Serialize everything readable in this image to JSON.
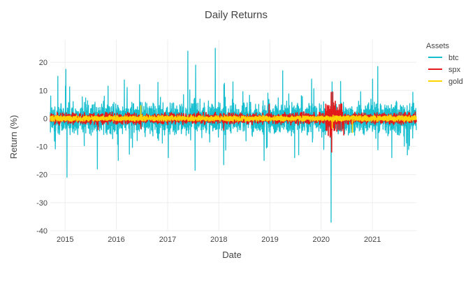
{
  "chart_data": {
    "type": "line",
    "title": "Daily Returns",
    "xlabel": "Date",
    "ylabel": "Return (%)",
    "x_range": [
      "2014-09-17",
      "2021-11-10"
    ],
    "ylim": [
      -40,
      28
    ],
    "y_ticks": [
      20,
      10,
      0,
      -10,
      -20,
      -30,
      -40
    ],
    "x_ticks": [
      "2015",
      "2016",
      "2017",
      "2018",
      "2019",
      "2020",
      "2021"
    ],
    "grid": true,
    "legend": {
      "title": "Assets",
      "placement": "top-right"
    },
    "series": [
      {
        "name": "btc",
        "color": "#17BECF",
        "typical_range": [
          -5,
          6
        ],
        "extremes": [
          {
            "x": "2014-09-20",
            "y": 8
          },
          {
            "x": "2014-11-10",
            "y": 15
          },
          {
            "x": "2015-01-06",
            "y": 17.5
          },
          {
            "x": "2015-01-14",
            "y": -21
          },
          {
            "x": "2015-08-19",
            "y": -18
          },
          {
            "x": "2015-11-03",
            "y": 11.5
          },
          {
            "x": "2016-01-15",
            "y": -15
          },
          {
            "x": "2016-06-15",
            "y": 12
          },
          {
            "x": "2017-01-06",
            "y": -14
          },
          {
            "x": "2017-05-25",
            "y": 24
          },
          {
            "x": "2017-07-16",
            "y": -18.5
          },
          {
            "x": "2017-07-20",
            "y": 19
          },
          {
            "x": "2017-12-07",
            "y": 25
          },
          {
            "x": "2018-02-05",
            "y": -16.5
          },
          {
            "x": "2018-02-06",
            "y": 12
          },
          {
            "x": "2018-04-12",
            "y": 13
          },
          {
            "x": "2018-11-20",
            "y": -15
          },
          {
            "x": "2019-04-02",
            "y": 17
          },
          {
            "x": "2019-06-26",
            "y": -14
          },
          {
            "x": "2019-10-25",
            "y": 14
          },
          {
            "x": "2020-03-12",
            "y": -37
          },
          {
            "x": "2020-03-19",
            "y": 13
          },
          {
            "x": "2021-01-02",
            "y": 14
          },
          {
            "x": "2021-02-08",
            "y": 18.5
          },
          {
            "x": "2021-05-19",
            "y": -14
          },
          {
            "x": "2021-09-07",
            "y": -13
          }
        ]
      },
      {
        "name": "spx",
        "color": "#E31A1C",
        "typical_range": [
          -2,
          2
        ],
        "extremes": [
          {
            "x": "2015-08-24",
            "y": -4
          },
          {
            "x": "2016-06-24",
            "y": -3.6
          },
          {
            "x": "2018-02-05",
            "y": -4.1
          },
          {
            "x": "2018-12-26",
            "y": 5
          },
          {
            "x": "2020-03-13",
            "y": 9.3
          },
          {
            "x": "2020-03-16",
            "y": -12
          },
          {
            "x": "2020-03-24",
            "y": 9.4
          },
          {
            "x": "2020-06-11",
            "y": -5.9
          }
        ]
      },
      {
        "name": "gold",
        "color": "#FFD400",
        "typical_range": [
          -1,
          1
        ],
        "extremes": [
          {
            "x": "2016-06-24",
            "y": 4.5
          },
          {
            "x": "2020-03-20",
            "y": -3.5
          },
          {
            "x": "2020-08-11",
            "y": -5
          }
        ]
      }
    ]
  }
}
